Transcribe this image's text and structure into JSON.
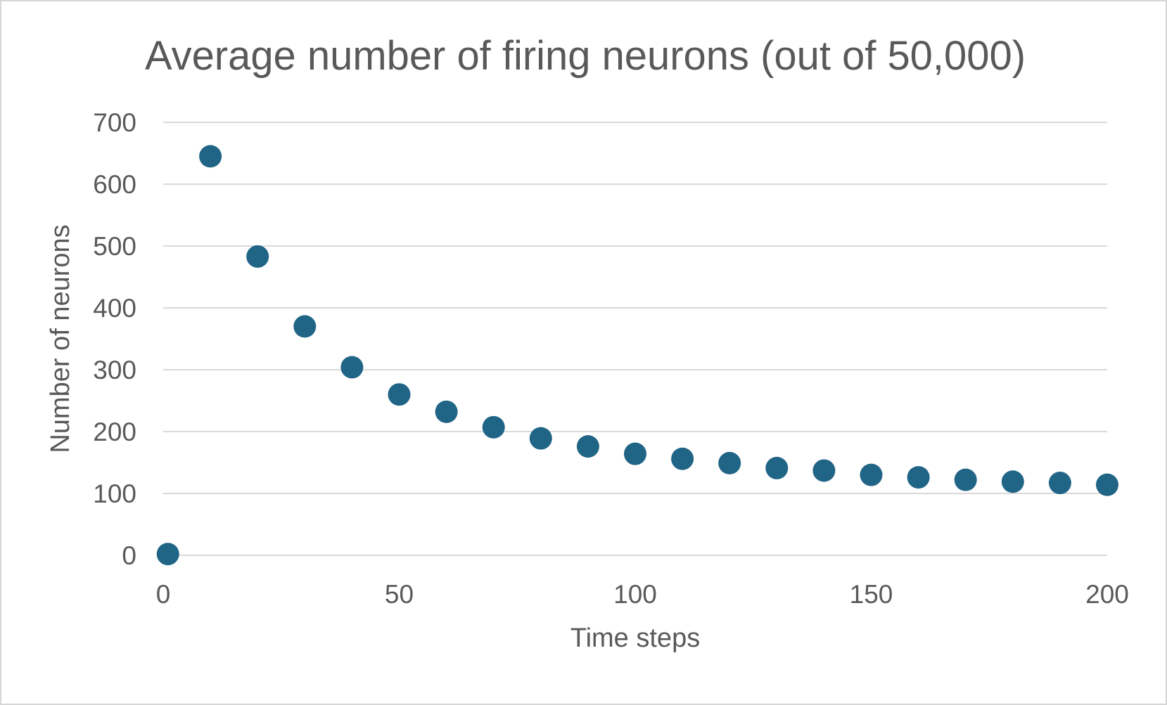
{
  "window": {
    "background_color": "#ffffff",
    "border_color": "#d6d6d6"
  },
  "chart_data": {
    "type": "scatter",
    "title": "Average number of firing neurons (out of 50,000)",
    "xlabel": "Time steps",
    "ylabel": "Number of neurons",
    "xlim": [
      0,
      200
    ],
    "ylim": [
      0,
      700
    ],
    "x_ticks": [
      0,
      50,
      100,
      150,
      200
    ],
    "y_ticks": [
      0,
      100,
      200,
      300,
      400,
      500,
      600,
      700
    ],
    "grid": "horizontal-only",
    "legend": "none",
    "title_color": "#595959",
    "text_color": "#595959",
    "gridline_color": "#d9d9d9",
    "marker": {
      "shape": "circle",
      "color": "#206486",
      "radius_px": 16
    },
    "series": [
      {
        "name": "average-firing-neurons",
        "points": [
          [
            1,
            2
          ],
          [
            10,
            645
          ],
          [
            20,
            483
          ],
          [
            30,
            370
          ],
          [
            40,
            304
          ],
          [
            50,
            260
          ],
          [
            60,
            232
          ],
          [
            70,
            207
          ],
          [
            80,
            189
          ],
          [
            90,
            176
          ],
          [
            100,
            164
          ],
          [
            110,
            156
          ],
          [
            120,
            149
          ],
          [
            130,
            141
          ],
          [
            140,
            137
          ],
          [
            150,
            130
          ],
          [
            160,
            126
          ],
          [
            170,
            122
          ],
          [
            180,
            119
          ],
          [
            190,
            117
          ],
          [
            200,
            114
          ]
        ]
      }
    ]
  }
}
